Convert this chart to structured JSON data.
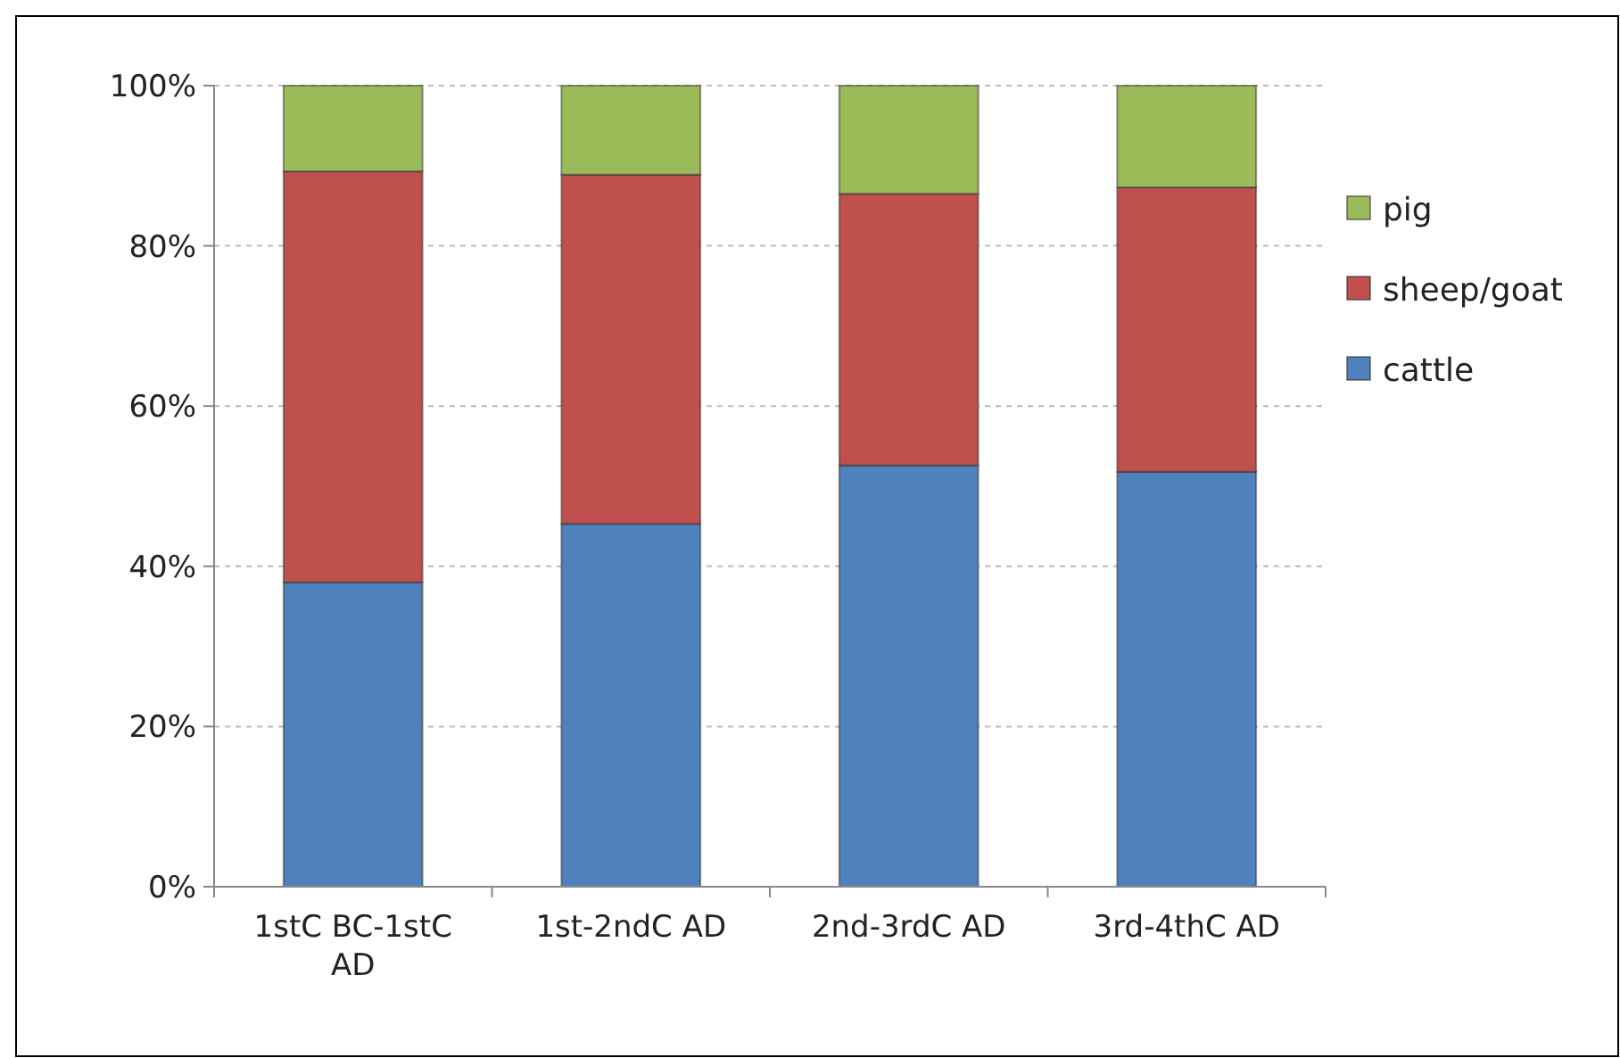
{
  "chart_data": {
    "type": "bar",
    "stacked": true,
    "categories": [
      "1stC BC-1stC AD",
      "1st-2ndC AD",
      "2nd-3rdC AD",
      "3rd-4thC AD"
    ],
    "series": [
      {
        "name": "cattle",
        "color": "#4f81bd",
        "values": [
          38.0,
          45.3,
          52.6,
          51.8
        ]
      },
      {
        "name": "sheep/goat",
        "color": "#c0504d",
        "values": [
          51.3,
          43.6,
          33.9,
          35.5
        ]
      },
      {
        "name": "pig",
        "color": "#9bbb59",
        "values": [
          10.7,
          11.1,
          13.5,
          12.7
        ]
      }
    ],
    "ylim": [
      0,
      100
    ],
    "yticks": [
      {
        "value": 0,
        "label": "0%"
      },
      {
        "value": 20,
        "label": "20%"
      },
      {
        "value": 40,
        "label": "40%"
      },
      {
        "value": 60,
        "label": "60%"
      },
      {
        "value": 80,
        "label": "80%"
      },
      {
        "value": 100,
        "label": "100%"
      }
    ],
    "grid": "y",
    "legend": "right"
  }
}
